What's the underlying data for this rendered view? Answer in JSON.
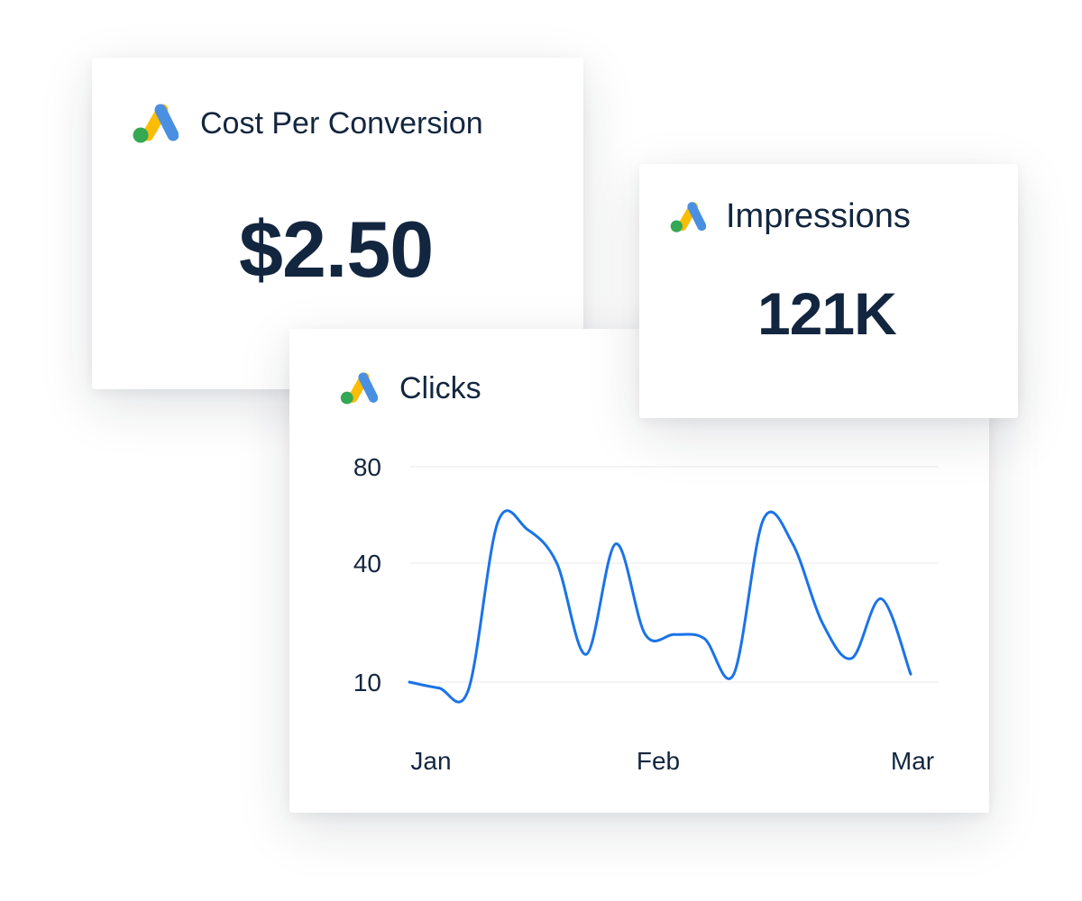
{
  "colors": {
    "text": "#13263f",
    "line": "#1a73e8",
    "grid": "#e8eaee",
    "logo_blue": "#4285f4",
    "logo_yellow": "#fbbc04",
    "logo_green": "#34a853"
  },
  "cards": {
    "cost_per_conversion": {
      "icon": "google-ads-icon",
      "title": "Cost Per Conversion",
      "value": "$2.50"
    },
    "impressions": {
      "icon": "google-ads-icon",
      "title": "Impressions",
      "value": "121K"
    },
    "clicks": {
      "icon": "google-ads-icon",
      "title": "Clicks"
    }
  },
  "chart_data": {
    "type": "line",
    "title": "Clicks",
    "xlabel": "",
    "ylabel": "",
    "y_ticks": [
      "80",
      "40",
      "10"
    ],
    "x_ticks": [
      "Jan",
      "Feb",
      "Mar"
    ],
    "grid": true,
    "series": [
      {
        "values": [
          10,
          8.5,
          8,
          57,
          54,
          40,
          17,
          48,
          22,
          22,
          21,
          12,
          58,
          48,
          25,
          16,
          31,
          12
        ]
      }
    ]
  }
}
